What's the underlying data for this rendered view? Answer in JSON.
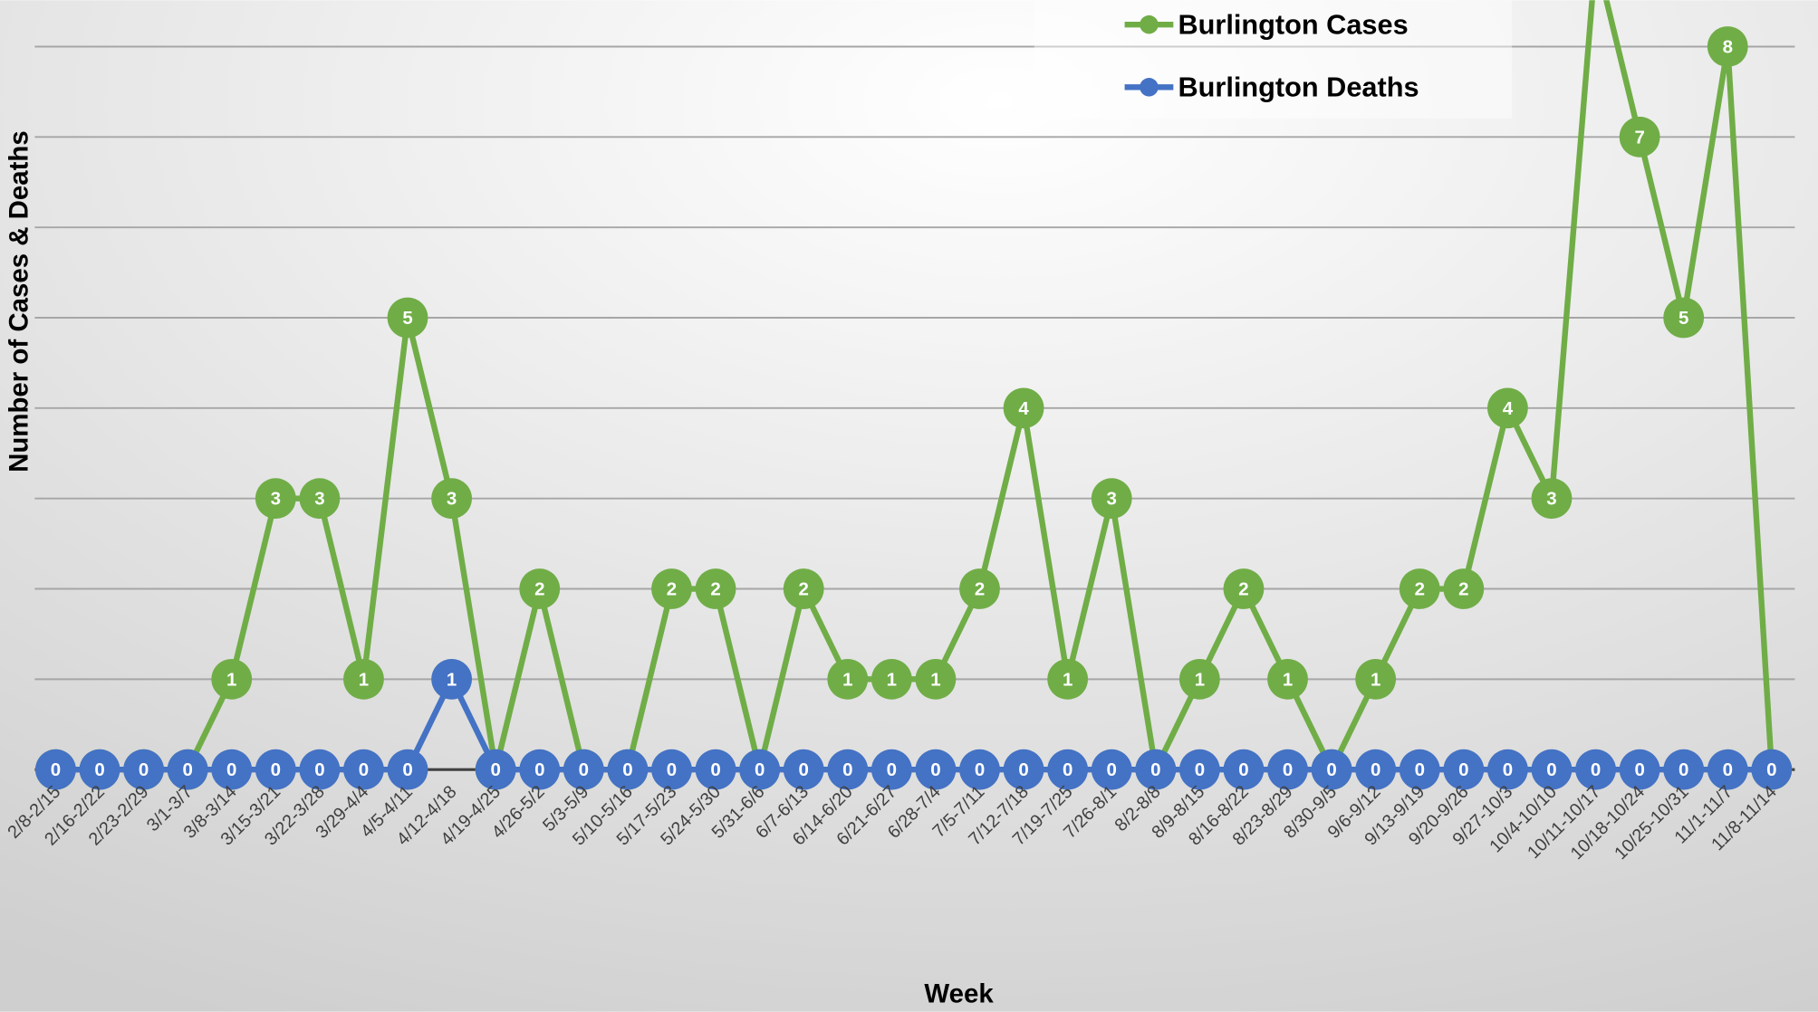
{
  "chart_data": {
    "type": "line",
    "x_label": "Week",
    "y_label": "Number of Cases & Deaths",
    "categories": [
      "2/8-2/15",
      "2/16-2/22",
      "2/23-2/29",
      "3/1-3/7",
      "3/8-3/14",
      "3/15-3/21",
      "3/22-3/28",
      "3/29-4/4",
      "4/5-4/11",
      "4/12-4/18",
      "4/19-4/25",
      "4/26-5/2",
      "5/3-5/9",
      "5/10-5/16",
      "5/17-5/23",
      "5/24-5/30",
      "5/31-6/6",
      "6/7-6/13",
      "6/14-6/20",
      "6/21-6/27",
      "6/28-7/4",
      "7/5-7/11",
      "7/12-7/18",
      "7/19-7/25",
      "7/26-8/1",
      "8/2-8/8",
      "8/9-8/15",
      "8/16-8/22",
      "8/23-8/29",
      "8/30-9/5",
      "9/6-9/12",
      "9/13-9/19",
      "9/20-9/26",
      "9/27-10/3",
      "10/4-10/10",
      "10/11-10/17",
      "10/18-10/24",
      "10/25-10/31",
      "11/1-11/7",
      "11/8-11/14"
    ],
    "series": [
      {
        "name": "Burlington Cases",
        "color": "#70ad47",
        "values": [
          0,
          0,
          0,
          0,
          1,
          3,
          3,
          1,
          5,
          3,
          0,
          2,
          0,
          0,
          2,
          2,
          0,
          2,
          1,
          1,
          1,
          2,
          4,
          1,
          3,
          0,
          1,
          2,
          1,
          0,
          1,
          2,
          2,
          4,
          3,
          9,
          7,
          5,
          8,
          0
        ]
      },
      {
        "name": "Burlington Deaths",
        "color": "#4472c4",
        "values": [
          0,
          0,
          0,
          0,
          0,
          0,
          0,
          0,
          0,
          1,
          0,
          0,
          0,
          0,
          0,
          0,
          0,
          0,
          0,
          0,
          0,
          0,
          0,
          0,
          0,
          0,
          0,
          0,
          0,
          0,
          0,
          0,
          0,
          0,
          0,
          0,
          0,
          0,
          0,
          0
        ]
      }
    ],
    "ylim": [
      0,
      8.5
    ],
    "yticks": [
      0,
      1,
      2,
      3,
      4,
      5,
      6,
      7,
      8
    ],
    "grid": true,
    "legend": "top-right"
  }
}
